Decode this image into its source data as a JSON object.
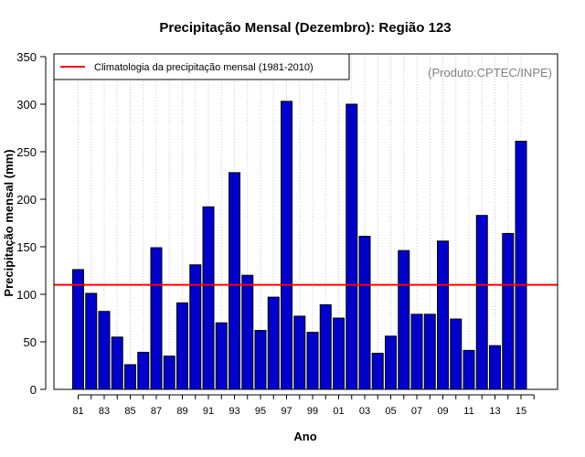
{
  "chart_data": {
    "type": "bar",
    "title": "Precipitação Mensal (Dezembro): Região 123",
    "xlabel": "Ano",
    "ylabel": "Precipitação mensal (mm)",
    "ylim": [
      0,
      350
    ],
    "yticks": [
      0,
      50,
      100,
      150,
      200,
      250,
      300,
      350
    ],
    "categories": [
      "81",
      "82",
      "83",
      "84",
      "85",
      "86",
      "87",
      "88",
      "89",
      "90",
      "91",
      "92",
      "93",
      "94",
      "95",
      "96",
      "97",
      "98",
      "99",
      "00",
      "01",
      "02",
      "03",
      "04",
      "05",
      "06",
      "07",
      "08",
      "09",
      "10",
      "11",
      "12",
      "13",
      "14",
      "15"
    ],
    "x_tick_labels_shown": [
      "81",
      "83",
      "85",
      "87",
      "89",
      "91",
      "93",
      "95",
      "97",
      "99",
      "01",
      "03",
      "05",
      "07",
      "09",
      "11",
      "13",
      "15"
    ],
    "values": [
      126,
      101,
      82,
      55,
      26,
      39,
      149,
      35,
      91,
      131,
      192,
      70,
      228,
      120,
      62,
      97,
      303,
      77,
      60,
      89,
      75,
      300,
      161,
      38,
      56,
      146,
      79,
      79,
      156,
      74,
      41,
      183,
      46,
      164,
      261
    ],
    "bar_color": "#0000cd",
    "climatology": {
      "label": "Climatologia da precipitação mensal (1981-2010)",
      "value": 110,
      "color": "#ff0000"
    },
    "legend_position": "top-left",
    "credit": "(Produto:CPTEC/INPE)",
    "grid": "vertical dotted"
  }
}
